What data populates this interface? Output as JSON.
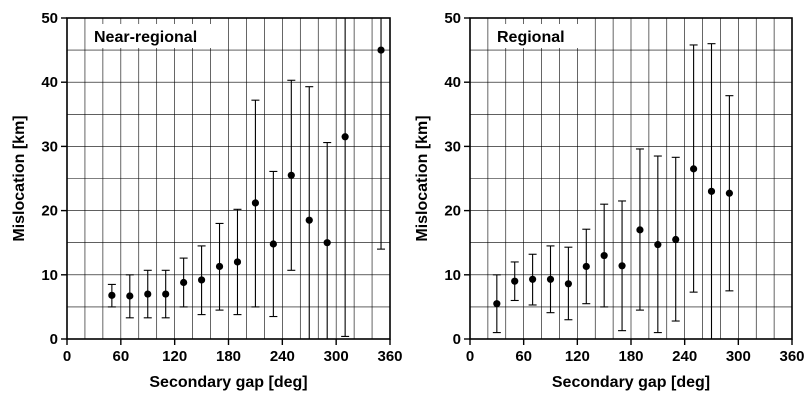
{
  "chart_data": [
    {
      "type": "scatter",
      "title": "Near-regional",
      "xlabel": "Secondary gap [deg]",
      "ylabel": "Mislocation [km]",
      "xlim": [
        0,
        360
      ],
      "ylim": [
        0,
        50
      ],
      "xticks": [
        "0",
        "60",
        "120",
        "180",
        "240",
        "300",
        "360"
      ],
      "yticks": [
        "0",
        "10",
        "20",
        "30",
        "40",
        "50"
      ],
      "grid": true,
      "points": [
        {
          "x": 50,
          "y": 6.8,
          "low": 5.0,
          "high": 8.5
        },
        {
          "x": 70,
          "y": 6.7,
          "low": 3.3,
          "high": 10.0
        },
        {
          "x": 90,
          "y": 7.0,
          "low": 3.3,
          "high": 10.7
        },
        {
          "x": 110,
          "y": 7.0,
          "low": 3.3,
          "high": 10.7
        },
        {
          "x": 130,
          "y": 8.8,
          "low": 5.0,
          "high": 12.6
        },
        {
          "x": 150,
          "y": 9.2,
          "low": 3.8,
          "high": 14.5
        },
        {
          "x": 170,
          "y": 11.3,
          "low": 4.5,
          "high": 18.0
        },
        {
          "x": 190,
          "y": 12.0,
          "low": 3.8,
          "high": 20.2
        },
        {
          "x": 210,
          "y": 21.2,
          "low": 5.0,
          "high": 37.2
        },
        {
          "x": 230,
          "y": 14.8,
          "low": 3.5,
          "high": 26.1
        },
        {
          "x": 250,
          "y": 25.5,
          "low": 10.7,
          "high": 40.3
        },
        {
          "x": 270,
          "y": 18.5,
          "low": 0.0,
          "high": 39.3
        },
        {
          "x": 290,
          "y": 15.0,
          "low": 0.0,
          "high": 30.6
        },
        {
          "x": 310,
          "y": 31.5,
          "low": 0.4,
          "high": 50.0
        },
        {
          "x": 350,
          "y": 45.0,
          "low": 14.0,
          "high": 50.0
        }
      ]
    },
    {
      "type": "scatter",
      "title": "Regional",
      "xlabel": "Secondary gap [deg]",
      "ylabel": "Mislocation [km]",
      "xlim": [
        0,
        360
      ],
      "ylim": [
        0,
        50
      ],
      "xticks": [
        "0",
        "60",
        "120",
        "180",
        "240",
        "300",
        "360"
      ],
      "yticks": [
        "0",
        "10",
        "20",
        "30",
        "40",
        "50"
      ],
      "grid": true,
      "points": [
        {
          "x": 30,
          "y": 5.5,
          "low": 1.0,
          "high": 10.0
        },
        {
          "x": 50,
          "y": 9.0,
          "low": 6.0,
          "high": 12.0
        },
        {
          "x": 70,
          "y": 9.3,
          "low": 5.3,
          "high": 13.2
        },
        {
          "x": 90,
          "y": 9.3,
          "low": 4.1,
          "high": 14.5
        },
        {
          "x": 110,
          "y": 8.6,
          "low": 3.0,
          "high": 14.3
        },
        {
          "x": 130,
          "y": 11.3,
          "low": 5.5,
          "high": 17.1
        },
        {
          "x": 150,
          "y": 13.0,
          "low": 5.0,
          "high": 21.0
        },
        {
          "x": 170,
          "y": 11.4,
          "low": 1.3,
          "high": 21.5
        },
        {
          "x": 190,
          "y": 17.0,
          "low": 4.5,
          "high": 29.6
        },
        {
          "x": 210,
          "y": 14.7,
          "low": 1.0,
          "high": 28.5
        },
        {
          "x": 230,
          "y": 15.5,
          "low": 2.8,
          "high": 28.3
        },
        {
          "x": 250,
          "y": 26.5,
          "low": 7.3,
          "high": 45.8
        },
        {
          "x": 270,
          "y": 23.0,
          "low": 0.0,
          "high": 46.0
        },
        {
          "x": 290,
          "y": 22.7,
          "low": 7.5,
          "high": 37.9
        }
      ]
    }
  ]
}
